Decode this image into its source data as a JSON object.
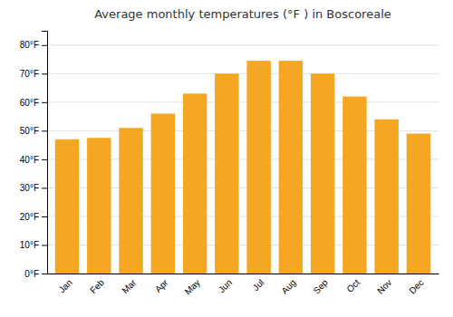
{
  "chart_data": {
    "type": "bar",
    "title": "Average monthly temperatures (°F ) in Boscoreale",
    "categories": [
      "Jan",
      "Feb",
      "Mar",
      "Apr",
      "May",
      "Jun",
      "Jul",
      "Aug",
      "Sep",
      "Oct",
      "Nov",
      "Dec"
    ],
    "values": [
      47,
      47.5,
      51,
      56,
      63,
      70,
      74.5,
      74.5,
      70,
      62,
      54,
      49
    ],
    "color": "#F5A623",
    "ylim": [
      0,
      85
    ],
    "yticks": [
      {
        "value": 0,
        "label": "0°F"
      },
      {
        "value": 10,
        "label": "10°F"
      },
      {
        "value": 20,
        "label": "20°F"
      },
      {
        "value": 30,
        "label": "30°F"
      },
      {
        "value": 40,
        "label": "40°F"
      },
      {
        "value": 50,
        "label": "50°F"
      },
      {
        "value": 60,
        "label": "60°F"
      },
      {
        "value": 70,
        "label": "70°F"
      },
      {
        "value": 80,
        "label": "80°F"
      }
    ],
    "grid": true
  }
}
